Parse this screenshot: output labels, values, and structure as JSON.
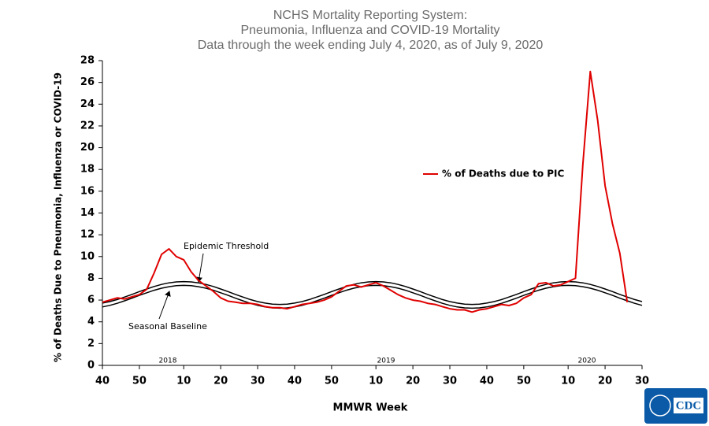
{
  "chart_data": {
    "type": "line",
    "title": [
      "NCHS Mortality Reporting System:",
      "Pneumonia, Influenza and COVID-19 Mortality",
      "Data through the week ending July 4, 2020, as of July 9, 2020"
    ],
    "ylabel": "% of Deaths Due to Pneumonia, Influenza or  COVID-19",
    "xlabel": "MMWR Week",
    "year_labels": [
      "2018",
      "2019",
      "2020"
    ],
    "logo_text": "CDC",
    "xlim": [
      0,
      146
    ],
    "ylim": [
      0,
      28
    ],
    "yticks": [
      0,
      2,
      4,
      6,
      8,
      10,
      12,
      14,
      16,
      18,
      20,
      22,
      24,
      26,
      28
    ],
    "xticks": [
      {
        "value": 0,
        "label": "40"
      },
      {
        "value": 10,
        "label": "50"
      },
      {
        "value": 22,
        "label": "10"
      },
      {
        "value": 32,
        "label": "20"
      },
      {
        "value": 42,
        "label": "30"
      },
      {
        "value": 52,
        "label": "40"
      },
      {
        "value": 62,
        "label": "50"
      },
      {
        "value": 74,
        "label": "10"
      },
      {
        "value": 84,
        "label": "20"
      },
      {
        "value": 94,
        "label": "30"
      },
      {
        "value": 104,
        "label": "40"
      },
      {
        "value": 114,
        "label": "50"
      },
      {
        "value": 126,
        "label": "10"
      },
      {
        "value": 136,
        "label": "20"
      },
      {
        "value": 146,
        "label": "30"
      }
    ],
    "grid": false,
    "x": [
      0,
      2,
      4,
      6,
      8,
      10,
      12,
      14,
      16,
      18,
      20,
      22,
      24,
      26,
      28,
      30,
      32,
      34,
      36,
      38,
      40,
      42,
      44,
      46,
      48,
      50,
      52,
      54,
      56,
      58,
      60,
      62,
      64,
      66,
      68,
      70,
      72,
      74,
      76,
      78,
      80,
      82,
      84,
      86,
      88,
      90,
      92,
      94,
      96,
      98,
      100,
      102,
      104,
      106,
      108,
      110,
      112,
      114,
      116,
      118,
      120,
      122,
      124,
      126,
      128,
      130,
      132,
      134,
      136,
      138,
      140,
      142,
      144,
      146
    ],
    "series": [
      {
        "name": "% of Deaths due to PIC",
        "color": "#e00000",
        "values": [
          5.8,
          6.0,
          6.2,
          6.1,
          6.3,
          6.5,
          7.0,
          8.5,
          10.2,
          10.7,
          10.0,
          9.7,
          8.6,
          7.8,
          7.3,
          6.8,
          6.2,
          5.9,
          5.8,
          5.7,
          5.7,
          5.6,
          5.4,
          5.3,
          5.3,
          5.2,
          5.4,
          5.6,
          5.7,
          5.8,
          6.0,
          6.3,
          6.8,
          7.3,
          7.4,
          7.2,
          7.4,
          7.6,
          7.3,
          6.9,
          6.5,
          6.2,
          6.0,
          5.9,
          5.7,
          5.6,
          5.4,
          5.2,
          5.1,
          5.1,
          4.9,
          5.1,
          5.2,
          5.4,
          5.6,
          5.5,
          5.7,
          6.2,
          6.5,
          7.5,
          7.6,
          7.3,
          7.4,
          7.7,
          8.0,
          18.5,
          27.0,
          22.5,
          16.5,
          13.0,
          10.3,
          5.8,
          null,
          null
        ]
      },
      {
        "name": "Seasonal Baseline",
        "color": "#000000",
        "values": [
          5.37,
          5.51,
          5.7,
          5.93,
          6.17,
          6.43,
          6.67,
          6.9,
          7.09,
          7.23,
          7.32,
          7.35,
          7.32,
          7.23,
          7.09,
          6.9,
          6.67,
          6.43,
          6.17,
          5.93,
          5.7,
          5.51,
          5.37,
          5.28,
          5.25,
          5.28,
          5.37,
          5.51,
          5.7,
          5.93,
          6.17,
          6.43,
          6.67,
          6.9,
          7.09,
          7.23,
          7.32,
          7.35,
          7.32,
          7.23,
          7.09,
          6.9,
          6.67,
          6.43,
          6.17,
          5.93,
          5.7,
          5.51,
          5.37,
          5.28,
          5.25,
          5.28,
          5.37,
          5.51,
          5.7,
          5.93,
          6.17,
          6.43,
          6.67,
          6.9,
          7.09,
          7.23,
          7.32,
          7.35,
          7.32,
          7.23,
          7.09,
          6.9,
          6.67,
          6.43,
          6.17,
          5.93,
          5.7,
          5.51
        ]
      },
      {
        "name": "Epidemic Threshold",
        "color": "#000000",
        "values": [
          5.72,
          5.86,
          6.05,
          6.28,
          6.52,
          6.78,
          7.02,
          7.25,
          7.44,
          7.58,
          7.67,
          7.7,
          7.67,
          7.58,
          7.44,
          7.25,
          7.02,
          6.78,
          6.52,
          6.28,
          6.05,
          5.86,
          5.72,
          5.63,
          5.6,
          5.63,
          5.72,
          5.86,
          6.05,
          6.28,
          6.52,
          6.78,
          7.02,
          7.25,
          7.44,
          7.58,
          7.67,
          7.7,
          7.67,
          7.58,
          7.44,
          7.25,
          7.02,
          6.78,
          6.52,
          6.28,
          6.05,
          5.86,
          5.72,
          5.63,
          5.6,
          5.63,
          5.72,
          5.86,
          6.05,
          6.28,
          6.52,
          6.78,
          7.02,
          7.25,
          7.44,
          7.58,
          7.67,
          7.7,
          7.67,
          7.58,
          7.44,
          7.25,
          7.02,
          6.78,
          6.52,
          6.28,
          6.05,
          5.86
        ]
      }
    ]
  }
}
